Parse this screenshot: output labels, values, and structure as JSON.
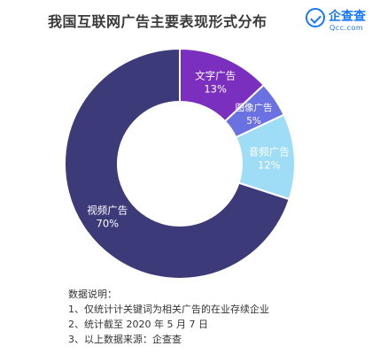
{
  "header": {
    "title": "我国互联网广告主要表现形式分布",
    "logo_cn": "企查查",
    "logo_en": "Qcc.com"
  },
  "chart_data": {
    "type": "pie",
    "title": "我国互联网广告主要表现形式分布",
    "donut": true,
    "slices": [
      {
        "label": "文字广告",
        "value": 13,
        "pct_label": "13%",
        "color": "#7b2fbe"
      },
      {
        "label": "图像广告",
        "value": 5,
        "pct_label": "5%",
        "color": "#6b71e0"
      },
      {
        "label": "音频广告",
        "value": 12,
        "pct_label": "12%",
        "color": "#9fdcf5"
      },
      {
        "label": "视频广告",
        "value": 70,
        "pct_label": "70%",
        "color": "#3c3a78"
      }
    ]
  },
  "notes": {
    "heading": "数据说明：",
    "lines": [
      "1、仅统计计关键词为相关广告的在业存续企业",
      "2、统计截至 2020 年 5 月 7 日",
      "3、以上数据来源：企查查"
    ]
  }
}
